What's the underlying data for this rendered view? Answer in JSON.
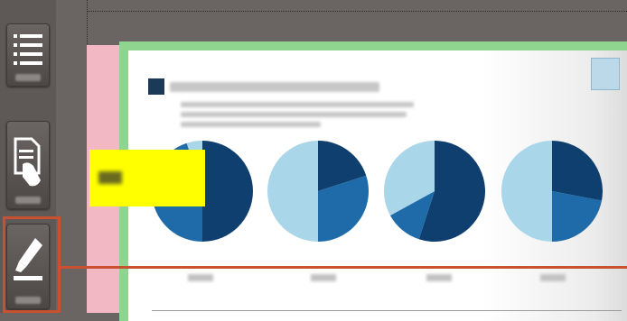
{
  "toolbar": {
    "items": [
      {
        "icon": "list-icon"
      },
      {
        "icon": "document-hand-icon"
      },
      {
        "icon": "highlighter-icon",
        "selected": true
      }
    ]
  },
  "colors": {
    "selection": "#c9512f",
    "highlight": "#ffff00",
    "margin_left": "#f2b8c4",
    "margin_frame": "#8fd48f",
    "pie_dark": "#0e3f6e",
    "pie_mid": "#1f6aa8",
    "pie_light": "#a9d6e8"
  },
  "document": {
    "pies": [
      {
        "slices": [
          0.5,
          0.45,
          0.05
        ]
      },
      {
        "slices": [
          0.2,
          0.3,
          0.5
        ]
      },
      {
        "slices": [
          0.55,
          0.12,
          0.33
        ]
      },
      {
        "slices": [
          0.28,
          0.22,
          0.5
        ]
      }
    ]
  }
}
